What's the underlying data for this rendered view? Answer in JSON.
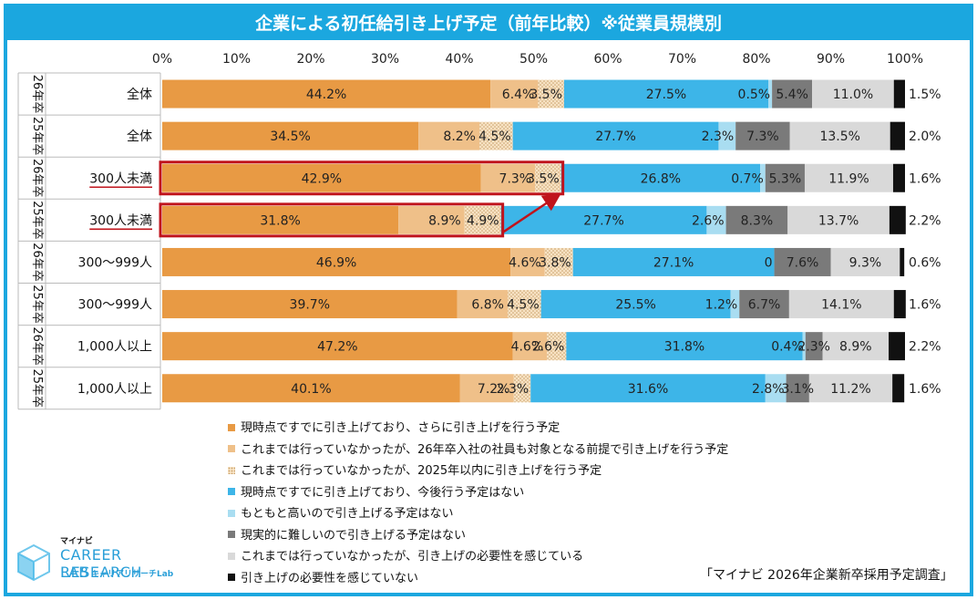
{
  "chart_data": {
    "type": "bar",
    "orientation": "horizontal",
    "stacked": true,
    "title": "企業による初任給引き上げ予定（前年比較）※従業員規模別",
    "x_ticks": [
      "0%",
      "10%",
      "20%",
      "30%",
      "40%",
      "50%",
      "60%",
      "70%",
      "80%",
      "90%",
      "100%"
    ],
    "xlim": [
      0,
      100
    ],
    "series": [
      {
        "name": "現時点ですでに引き上げており、さらに引き上げを行う予定",
        "color": "#E89A44",
        "pattern": "solid"
      },
      {
        "name": "これまでは行っていなかったが、26年卒入社の社員も対象となる前提で引き上げを行う予定",
        "color": "#EFC089",
        "pattern": "solid"
      },
      {
        "name": "これまでは行っていなかったが、2025年以内に引き上げを行う予定",
        "color": "#F7E2C3",
        "pattern": "dots"
      },
      {
        "name": "現時点ですでに引き上げており、今後行う予定はない",
        "color": "#3DB5E8",
        "pattern": "solid"
      },
      {
        "name": "もともと高いので引き上げる予定はない",
        "color": "#A9DDF1",
        "pattern": "solid"
      },
      {
        "name": "現実的に難しいので引き上げる予定はない",
        "color": "#7A7A7A",
        "pattern": "solid"
      },
      {
        "name": "これまでは行っていなかったが、引き上げの必要性を感じている",
        "color": "#D9D9D9",
        "pattern": "solid"
      },
      {
        "name": "引き上げの必要性を感じていない",
        "color": "#111111",
        "pattern": "solid"
      }
    ],
    "rows": [
      {
        "year": "26年卒",
        "category": "全体",
        "values": [
          44.2,
          6.4,
          3.5,
          27.5,
          0.5,
          5.4,
          11.0,
          1.5
        ],
        "labels": [
          "44.2%",
          "6.4%",
          "3.5%",
          "27.5%",
          "0.5%",
          "5.4%",
          "11.0%",
          "1.5%"
        ],
        "highlight": false
      },
      {
        "year": "25年卒",
        "category": "全体",
        "values": [
          34.5,
          8.2,
          4.5,
          27.7,
          2.3,
          7.3,
          13.5,
          2.0
        ],
        "labels": [
          "34.5%",
          "8.2%",
          "4.5%",
          "27.7%",
          "2.3%",
          "7.3%",
          "13.5%",
          "2.0%"
        ],
        "highlight": false
      },
      {
        "year": "26年卒",
        "category": "300人未満",
        "values": [
          42.9,
          7.3,
          3.5,
          26.8,
          0.7,
          5.3,
          11.9,
          1.6
        ],
        "labels": [
          "42.9%",
          "7.3%",
          "3.5%",
          "26.8%",
          "0.7%",
          "5.3%",
          "11.9%",
          "1.6%"
        ],
        "highlight": true
      },
      {
        "year": "25年卒",
        "category": "300人未満",
        "values": [
          31.8,
          8.9,
          4.9,
          27.7,
          2.6,
          8.3,
          13.7,
          2.2
        ],
        "labels": [
          "31.8%",
          "8.9%",
          "4.9%",
          "27.7%",
          "2.6%",
          "8.3%",
          "13.7%",
          "2.2%"
        ],
        "highlight": true
      },
      {
        "year": "26年卒",
        "category": "300～999人",
        "values": [
          46.9,
          4.6,
          3.8,
          27.1,
          0.0,
          7.6,
          9.3,
          0.6
        ],
        "labels": [
          "46.9%",
          "4.6%",
          "3.8%",
          "27.1%",
          "0",
          "7.6%",
          "9.3%",
          "0.6%"
        ],
        "highlight": false
      },
      {
        "year": "25年卒",
        "category": "300～999人",
        "values": [
          39.7,
          6.8,
          4.5,
          25.5,
          1.2,
          6.7,
          14.1,
          1.6
        ],
        "labels": [
          "39.7%",
          "6.8%",
          "4.5%",
          "25.5%",
          "1.2%",
          "6.7%",
          "14.1%",
          "1.6%"
        ],
        "highlight": false
      },
      {
        "year": "26年卒",
        "category": "1,000人以上",
        "values": [
          47.2,
          4.6,
          2.6,
          31.8,
          0.4,
          2.3,
          8.9,
          2.2
        ],
        "labels": [
          "47.2%",
          "4.6%",
          "2.6%",
          "31.8%",
          "0.4%",
          "2.3%",
          "8.9%",
          "2.2%"
        ],
        "highlight": false
      },
      {
        "year": "25年卒",
        "category": "1,000人以上",
        "values": [
          40.1,
          7.2,
          2.3,
          31.6,
          2.8,
          3.1,
          11.2,
          1.6
        ],
        "labels": [
          "40.1%",
          "7.2%",
          "2.3%",
          "31.6%",
          "2.8%",
          "3.1%",
          "11.2%",
          "1.6%"
        ],
        "highlight": false
      }
    ],
    "annotation": "arrow from 25年卒 300人未満 to 26年卒 300人未満 (first three segments)"
  },
  "source": "「マイナビ 2026年企業新卒採用予定調査」",
  "logo": {
    "line1": "マイナビ",
    "line2": "CAREER RESEARCH",
    "line3": "LAB",
    "line4": "キャリアリサーチLab"
  }
}
